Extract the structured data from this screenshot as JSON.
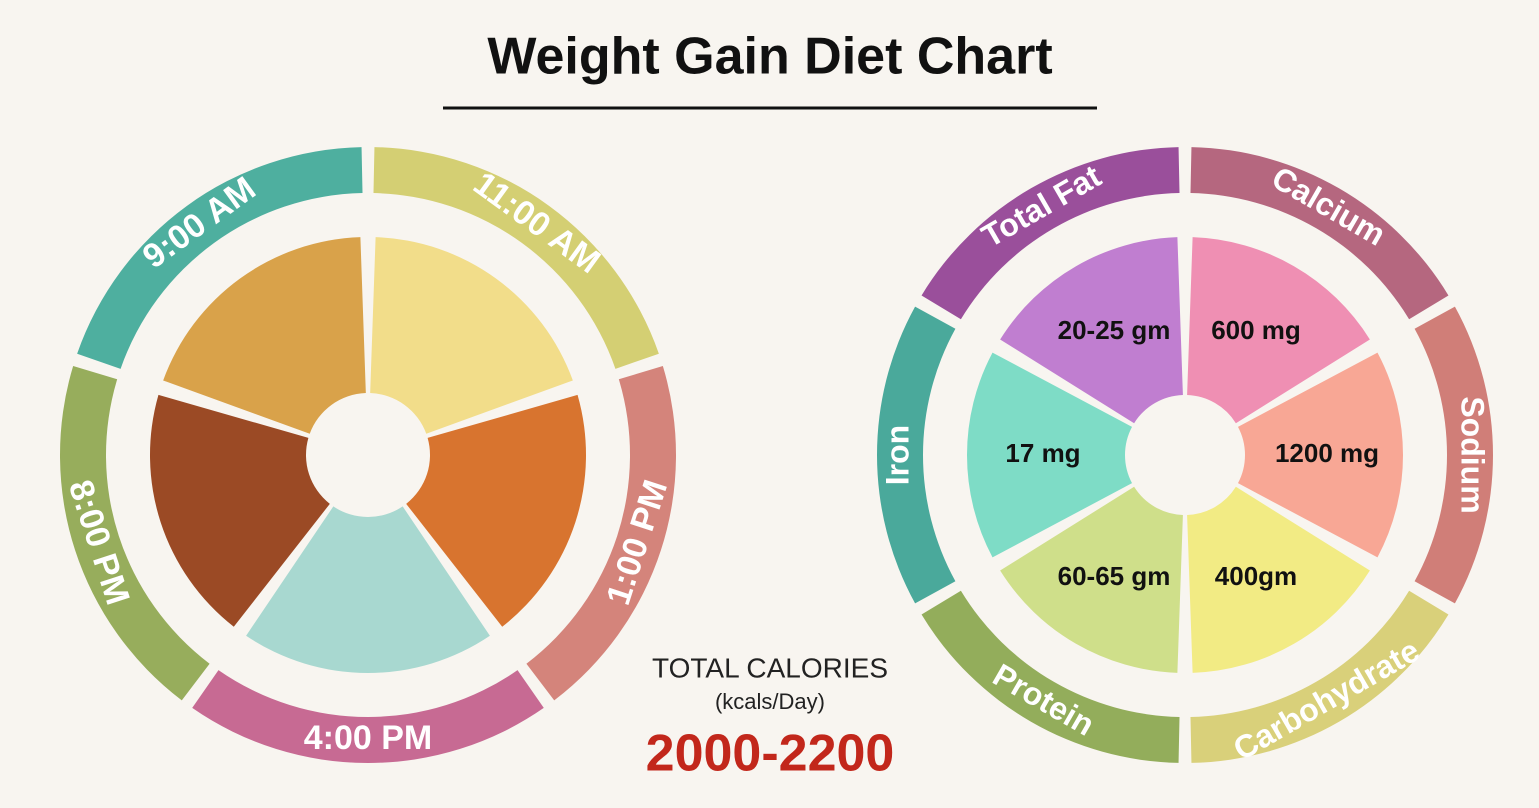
{
  "title": "Weight Gain Diet Chart",
  "meal_schedule": [
    {
      "time": "9:00 AM"
    },
    {
      "time": "11:00 AM"
    },
    {
      "time": "1:00 PM"
    },
    {
      "time": "4:00 PM"
    },
    {
      "time": "8:00 PM"
    }
  ],
  "nutrients": [
    {
      "name": "Total Fat",
      "amount": "20-25 gm"
    },
    {
      "name": "Calcium",
      "amount": "600 mg"
    },
    {
      "name": "Sodium",
      "amount": "1200 mg"
    },
    {
      "name": "Carbohydrate",
      "amount": "400gm"
    },
    {
      "name": "Protein",
      "amount": "60-65 gm"
    },
    {
      "name": "Iron",
      "amount": "17 mg"
    }
  ],
  "total_calories": {
    "label": "TOTAL CALORIES",
    "unit": "(kcals/Day)",
    "value": "2000-2200"
  }
}
